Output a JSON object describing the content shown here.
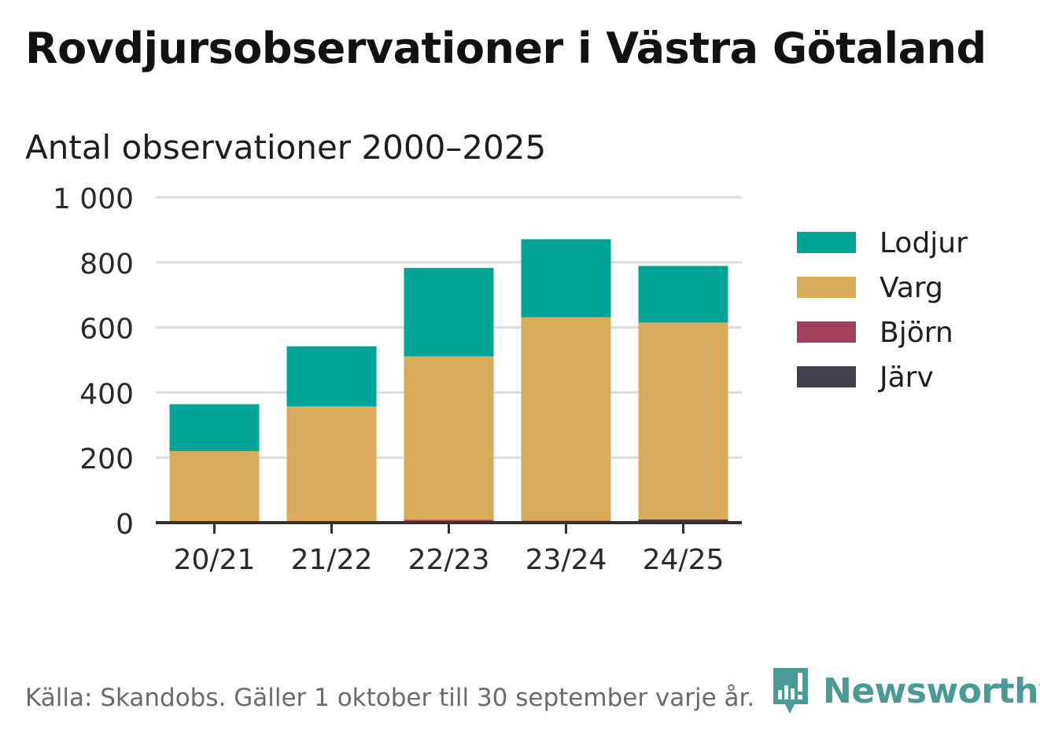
{
  "header": {
    "title": "Rovdjursobservationer i Västra Götaland",
    "subtitle": "Antal observationer 2000–2025"
  },
  "footer": {
    "source": "Källa: Skandobs. Gäller 1 oktober till 30 september varje år.",
    "brand": "Newsworthy"
  },
  "colors": {
    "lodjur": "#00a499",
    "varg": "#d9ab5b",
    "bjorn": "#a3405e",
    "jarv": "#3f3f4d",
    "grid": "#dcdcdc",
    "axis": "#333333",
    "brand": "#4a9a96"
  },
  "icons": {
    "brand_logo": "newsworthy-logo-icon"
  },
  "chart_data": {
    "type": "bar",
    "stacked": true,
    "title": "Rovdjursobservationer i Västra Götaland",
    "subtitle": "Antal observationer 2000–2025",
    "xlabel": "",
    "ylabel": "",
    "ylim": [
      0,
      1000
    ],
    "yticks": [
      0,
      200,
      400,
      600,
      800,
      1000
    ],
    "ytick_labels": [
      "0",
      "200",
      "400",
      "600",
      "800",
      "1 000"
    ],
    "grid": true,
    "legend_position": "right",
    "categories": [
      "20/21",
      "21/22",
      "22/23",
      "23/24",
      "24/25"
    ],
    "series": [
      {
        "name": "Järv",
        "key": "jarv",
        "values": [
          2,
          2,
          3,
          3,
          10
        ]
      },
      {
        "name": "Björn",
        "key": "bjorn",
        "values": [
          0,
          0,
          6,
          3,
          0
        ]
      },
      {
        "name": "Varg",
        "key": "varg",
        "values": [
          218,
          355,
          502,
          625,
          605
        ]
      },
      {
        "name": "Lodjur",
        "key": "lodjur",
        "values": [
          144,
          185,
          272,
          240,
          174
        ]
      }
    ],
    "legend": [
      "Lodjur",
      "Varg",
      "Björn",
      "Järv"
    ]
  }
}
